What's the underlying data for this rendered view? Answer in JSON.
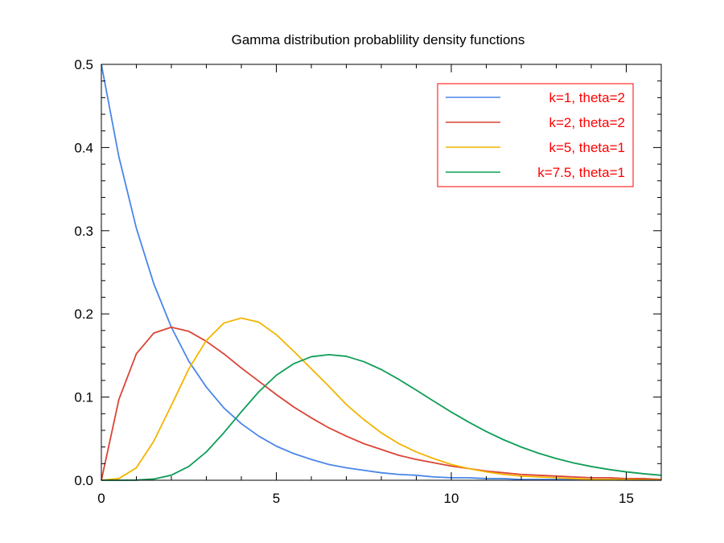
{
  "chart_data": {
    "type": "line",
    "title": "Gamma distribution probablility density functions",
    "xlabel": "",
    "ylabel": "",
    "xlim": [
      0,
      16
    ],
    "ylim": [
      0,
      0.5
    ],
    "x_major_ticks": [
      0,
      5,
      10,
      15
    ],
    "x_tick_labels": [
      "0",
      "5",
      "10",
      "15"
    ],
    "x_minor_step": 1,
    "y_major_ticks": [
      0,
      0.1,
      0.2,
      0.3,
      0.4,
      0.5
    ],
    "y_tick_labels": [
      "0.0",
      "0.1",
      "0.2",
      "0.3",
      "0.4",
      "0.5"
    ],
    "y_minor_step": 0.02,
    "grid": false,
    "legend_position": "top-right",
    "legend_text_color": "#ff0000",
    "legend_border_color": "#ff0000",
    "series": [
      {
        "name": "k=1, theta=2",
        "color": "#4a86e8",
        "x": [
          0,
          0.5,
          1,
          1.5,
          2,
          2.5,
          3,
          3.5,
          4,
          4.5,
          5,
          5.5,
          6,
          6.5,
          7,
          7.5,
          8,
          8.5,
          9,
          9.5,
          10,
          10.5,
          11,
          11.5,
          12,
          12.5,
          13,
          13.5,
          14,
          14.5,
          15,
          15.5,
          16
        ],
        "y": [
          0.5,
          0.389,
          0.303,
          0.236,
          0.184,
          0.143,
          0.112,
          0.087,
          0.068,
          0.053,
          0.041,
          0.032,
          0.025,
          0.019,
          0.015,
          0.012,
          0.009,
          0.007,
          0.006,
          0.004,
          0.003,
          0.003,
          0.002,
          0.002,
          0.001,
          0.001,
          0.001,
          0.001,
          0.0005,
          0.0004,
          0.0003,
          0.0002,
          0.0002
        ]
      },
      {
        "name": "k=2, theta=2",
        "color": "#db4437",
        "x": [
          0,
          0.5,
          1,
          1.5,
          2,
          2.5,
          3,
          3.5,
          4,
          4.5,
          5,
          5.5,
          6,
          6.5,
          7,
          7.5,
          8,
          8.5,
          9,
          9.5,
          10,
          10.5,
          11,
          11.5,
          12,
          12.5,
          13,
          13.5,
          14,
          14.5,
          15,
          15.5,
          16
        ],
        "y": [
          0,
          0.097,
          0.152,
          0.177,
          0.184,
          0.179,
          0.167,
          0.152,
          0.135,
          0.119,
          0.103,
          0.088,
          0.075,
          0.063,
          0.053,
          0.044,
          0.037,
          0.03,
          0.025,
          0.021,
          0.017,
          0.014,
          0.011,
          0.009,
          0.007,
          0.006,
          0.005,
          0.004,
          0.003,
          0.003,
          0.002,
          0.002,
          0.001
        ]
      },
      {
        "name": "k=5, theta=1",
        "color": "#f4b400",
        "x": [
          0,
          0.5,
          1,
          1.5,
          2,
          2.5,
          3,
          3.5,
          4,
          4.5,
          5,
          5.5,
          6,
          6.5,
          7,
          7.5,
          8,
          8.5,
          9,
          9.5,
          10,
          10.5,
          11,
          11.5,
          12,
          12.5,
          13,
          13.5,
          14,
          14.5,
          15,
          15.5,
          16
        ],
        "y": [
          0,
          0.002,
          0.015,
          0.047,
          0.09,
          0.134,
          0.168,
          0.189,
          0.195,
          0.19,
          0.175,
          0.155,
          0.134,
          0.113,
          0.091,
          0.073,
          0.057,
          0.044,
          0.034,
          0.026,
          0.019,
          0.014,
          0.01,
          0.007,
          0.005,
          0.004,
          0.003,
          0.002,
          0.001,
          0.001,
          0.001,
          0.0005,
          0.0003
        ]
      },
      {
        "name": "k=7.5, theta=1",
        "color": "#0f9d58",
        "x": [
          0,
          0.5,
          1,
          1.5,
          2,
          2.5,
          3,
          3.5,
          4,
          4.5,
          5,
          5.5,
          6,
          6.5,
          7,
          7.5,
          8,
          8.5,
          9,
          9.5,
          10,
          10.5,
          11,
          11.5,
          12,
          12.5,
          13,
          13.5,
          14,
          14.5,
          15,
          15.5,
          16
        ],
        "y": [
          0,
          1e-05,
          0.0002,
          0.0015,
          0.0061,
          0.0166,
          0.0341,
          0.0571,
          0.0823,
          0.1064,
          0.1262,
          0.1402,
          0.1485,
          0.151,
          0.149,
          0.1426,
          0.1331,
          0.1213,
          0.1083,
          0.095,
          0.082,
          0.0698,
          0.0586,
          0.0486,
          0.0399,
          0.0324,
          0.0261,
          0.0208,
          0.0165,
          0.013,
          0.0101,
          0.0078,
          0.006
        ]
      }
    ]
  }
}
